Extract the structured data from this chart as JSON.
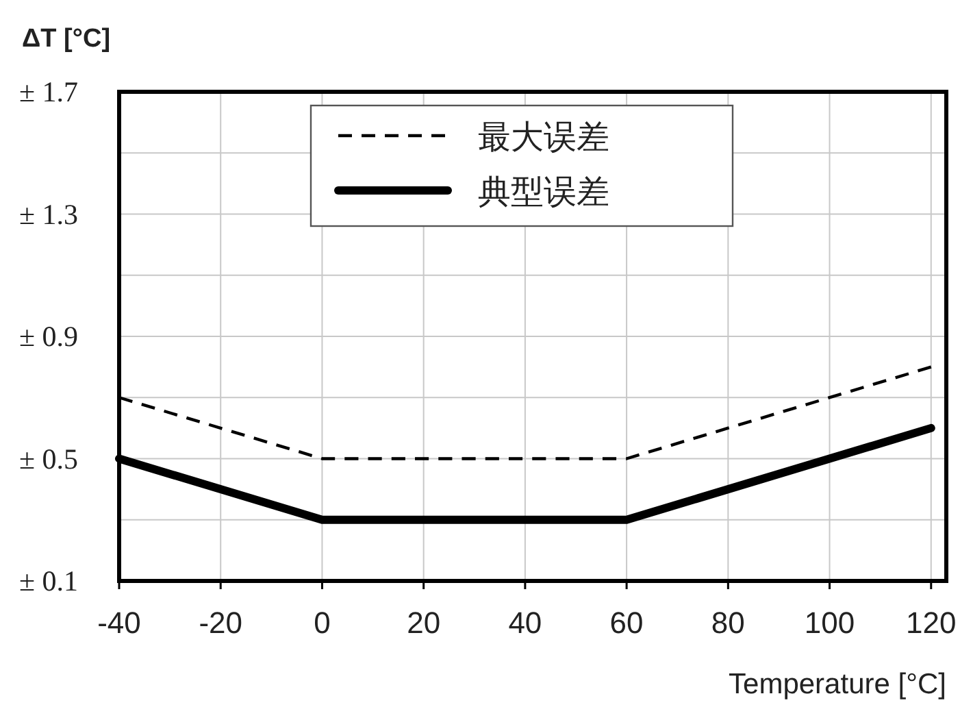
{
  "chart_data": {
    "type": "line",
    "ylabel": "ΔT [°C]",
    "xlabel": "Temperature [°C]",
    "x": [
      -40,
      0,
      60,
      120
    ],
    "series": [
      {
        "name": "最大误差",
        "color": "#000000",
        "values": [
          0.7,
          0.5,
          0.5,
          0.8
        ],
        "line_style": "dashed"
      },
      {
        "name": "典型误差",
        "color": "#000000",
        "values": [
          0.5,
          0.3,
          0.3,
          0.6
        ],
        "line_style": "solid"
      }
    ],
    "xlim": [
      -40,
      123
    ],
    "ylim": [
      0.1,
      1.7
    ],
    "xticks": [
      -40,
      -20,
      0,
      20,
      40,
      60,
      80,
      100,
      120
    ],
    "yticks": [
      {
        "value": 0.1,
        "label": "± 0.1"
      },
      {
        "value": 0.3,
        "label": null
      },
      {
        "value": 0.5,
        "label": "± 0.5"
      },
      {
        "value": 0.7,
        "label": null
      },
      {
        "value": 0.9,
        "label": "± 0.9"
      },
      {
        "value": 1.1,
        "label": null
      },
      {
        "value": 1.3,
        "label": "± 1.3"
      },
      {
        "value": 1.5,
        "label": null
      },
      {
        "value": 1.7,
        "label": "± 1.7"
      }
    ],
    "grid": true,
    "legend": "top",
    "marker": "none"
  }
}
